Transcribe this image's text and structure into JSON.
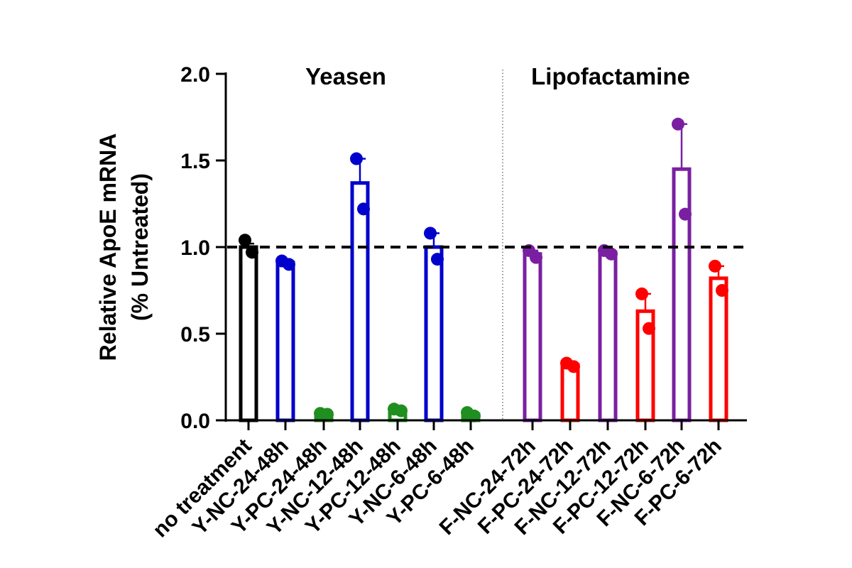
{
  "chart_data": {
    "type": "bar",
    "ylabel_line1": "Relative ApoE mRNA",
    "ylabel_line2": "(% Untreated)",
    "ylim": [
      0,
      2.0
    ],
    "yticks": [
      "0.0",
      "0.5",
      "1.0",
      "1.5",
      "2.0"
    ],
    "reference_line": 1.0,
    "groups": [
      {
        "label": "Yeasen",
        "categories": [
          "Y-NC-24-48h",
          "Y-PC-24-48h",
          "Y-NC-12-48h",
          "Y-PC-12-48h",
          "Y-NC-6-48h",
          "Y-PC-6-48h"
        ]
      },
      {
        "label": "Lipofactamine",
        "categories": [
          "F-NC-24-72h",
          "F-PC-24-72h",
          "F-NC-12-72h",
          "F-PC-12-72h",
          "F-NC-6-72h",
          "F-PC-6-72h"
        ]
      }
    ],
    "bars": [
      {
        "category": "no treatment",
        "value": 1.0,
        "error": 0.02,
        "points": [
          1.04,
          0.97
        ],
        "color": "#000000"
      },
      {
        "category": "Y-NC-24-48h",
        "value": 0.91,
        "error": 0.01,
        "points": [
          0.92,
          0.9
        ],
        "color": "#0000cc"
      },
      {
        "category": "Y-PC-24-48h",
        "value": 0.04,
        "error": 0.005,
        "points": [
          0.04,
          0.035
        ],
        "color": "#1f8f1f"
      },
      {
        "category": "Y-NC-12-48h",
        "value": 1.37,
        "error": 0.14,
        "points": [
          1.51,
          1.22
        ],
        "color": "#0000cc"
      },
      {
        "category": "Y-PC-12-48h",
        "value": 0.06,
        "error": 0.005,
        "points": [
          0.065,
          0.055
        ],
        "color": "#1f8f1f"
      },
      {
        "category": "Y-NC-6-48h",
        "value": 1.0,
        "error": 0.08,
        "points": [
          1.08,
          0.93
        ],
        "color": "#0000cc"
      },
      {
        "category": "Y-PC-6-48h",
        "value": 0.035,
        "error": 0.01,
        "points": [
          0.045,
          0.025
        ],
        "color": "#1f8f1f"
      },
      {
        "category": "F-NC-24-72h",
        "value": 0.96,
        "error": 0.02,
        "points": [
          0.98,
          0.94
        ],
        "color": "#7a1fa2"
      },
      {
        "category": "F-PC-24-72h",
        "value": 0.32,
        "error": 0.01,
        "points": [
          0.33,
          0.31
        ],
        "color": "#ff0000"
      },
      {
        "category": "F-NC-12-72h",
        "value": 0.97,
        "error": 0.01,
        "points": [
          0.98,
          0.96
        ],
        "color": "#7a1fa2"
      },
      {
        "category": "F-PC-12-72h",
        "value": 0.63,
        "error": 0.1,
        "points": [
          0.73,
          0.53
        ],
        "color": "#ff0000"
      },
      {
        "category": "F-NC-6-72h",
        "value": 1.45,
        "error": 0.26,
        "points": [
          1.71,
          1.19
        ],
        "color": "#7a1fa2"
      },
      {
        "category": "F-PC-6-72h",
        "value": 0.82,
        "error": 0.07,
        "points": [
          0.89,
          0.75
        ],
        "color": "#ff0000"
      }
    ]
  }
}
